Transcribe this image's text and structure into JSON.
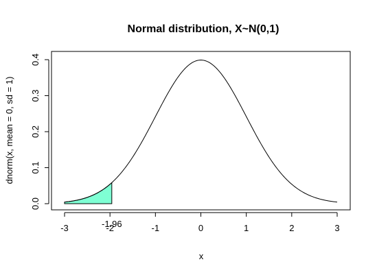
{
  "chart_data": {
    "type": "line",
    "title": "Normal distribution, X~N(0,1)",
    "xlabel": "x",
    "ylabel": "dnorm(x, mean = 0, sd = 1)",
    "xlim": [
      -3,
      3
    ],
    "ylim": [
      0.0,
      0.4
    ],
    "x_ticks": [
      -3,
      -2,
      -1,
      0,
      1,
      2,
      3
    ],
    "x_tick_labels": [
      "-3",
      "-2",
      "-1",
      "0",
      "1",
      "2",
      "3"
    ],
    "y_ticks": [
      0.0,
      0.1,
      0.2,
      0.3,
      0.4
    ],
    "y_tick_labels": [
      "0.0",
      "0.1",
      "0.2",
      "0.3",
      "0.4"
    ],
    "grid": false,
    "series": [
      {
        "x": [
          -3.0,
          -2.75,
          -2.5,
          -2.25,
          -2.0,
          -1.75,
          -1.5,
          -1.25,
          -1.0,
          -0.75,
          -0.5,
          -0.25,
          0.0,
          0.25,
          0.5,
          0.75,
          1.0,
          1.25,
          1.5,
          1.75,
          2.0,
          2.25,
          2.5,
          2.75,
          3.0
        ],
        "y": [
          0.0044,
          0.0091,
          0.0175,
          0.0317,
          0.054,
          0.0863,
          0.1295,
          0.1826,
          0.242,
          0.3011,
          0.3521,
          0.3867,
          0.3989,
          0.3867,
          0.3521,
          0.3011,
          0.242,
          0.1826,
          0.1295,
          0.0863,
          0.054,
          0.0317,
          0.0175,
          0.0091,
          0.0044
        ],
        "color": "#000000"
      }
    ],
    "shaded_region": {
      "x_from": -3,
      "x_to": -1.96,
      "fill": "#7fffd4",
      "border": "#000000"
    },
    "annotation": {
      "text": "-1.96",
      "x": -1.96
    }
  }
}
